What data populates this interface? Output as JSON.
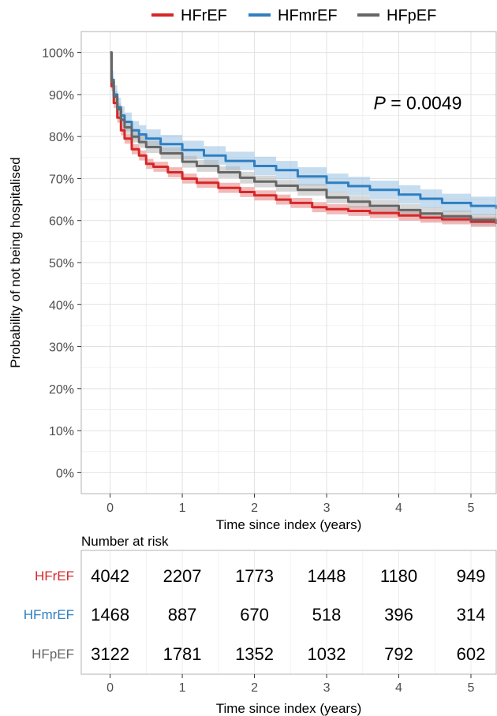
{
  "chart_data": {
    "type": "line",
    "subtype": "kaplan-meier",
    "ylabel": "Probability of not being hospitalised",
    "xlabel": "Time since index (years)",
    "xlim": [
      -0.4,
      5.35
    ],
    "ylim": [
      -0.05,
      1.05
    ],
    "x_ticks": [
      0,
      1,
      2,
      3,
      4,
      5
    ],
    "x_tick_labels": [
      "0",
      "1",
      "2",
      "3",
      "4",
      "5"
    ],
    "y_ticks": [
      0,
      0.1,
      0.2,
      0.3,
      0.4,
      0.5,
      0.6,
      0.7,
      0.8,
      0.9,
      1.0
    ],
    "y_tick_labels": [
      "0%",
      "10%",
      "20%",
      "30%",
      "40%",
      "50%",
      "60%",
      "70%",
      "80%",
      "90%",
      "100%"
    ],
    "grid": true,
    "legend_position": "top",
    "annotation": {
      "italic": "P",
      "rest": " = 0.0049",
      "x": 4.0,
      "y": 0.88
    },
    "series": [
      {
        "name": "HFrEF",
        "color": "#d62728",
        "band_color": "#e57373",
        "points": [
          [
            0,
            1.0
          ],
          [
            0.02,
            0.92
          ],
          [
            0.05,
            0.88
          ],
          [
            0.1,
            0.845
          ],
          [
            0.15,
            0.815
          ],
          [
            0.2,
            0.795
          ],
          [
            0.3,
            0.77
          ],
          [
            0.4,
            0.755
          ],
          [
            0.5,
            0.735
          ],
          [
            0.6,
            0.728
          ],
          [
            0.8,
            0.715
          ],
          [
            1.0,
            0.7
          ],
          [
            1.2,
            0.69
          ],
          [
            1.5,
            0.678
          ],
          [
            1.8,
            0.668
          ],
          [
            2.0,
            0.66
          ],
          [
            2.3,
            0.65
          ],
          [
            2.5,
            0.642
          ],
          [
            2.8,
            0.632
          ],
          [
            3.0,
            0.627
          ],
          [
            3.3,
            0.623
          ],
          [
            3.6,
            0.618
          ],
          [
            4.0,
            0.612
          ],
          [
            4.3,
            0.607
          ],
          [
            4.6,
            0.603
          ],
          [
            5.0,
            0.597
          ],
          [
            5.35,
            0.592
          ]
        ],
        "ci": 0.012
      },
      {
        "name": "HFmrEF",
        "color": "#2e7fc1",
        "band_color": "#8db9e0",
        "points": [
          [
            0,
            1.0
          ],
          [
            0.02,
            0.935
          ],
          [
            0.05,
            0.9
          ],
          [
            0.1,
            0.87
          ],
          [
            0.15,
            0.85
          ],
          [
            0.2,
            0.835
          ],
          [
            0.3,
            0.815
          ],
          [
            0.4,
            0.805
          ],
          [
            0.5,
            0.795
          ],
          [
            0.7,
            0.782
          ],
          [
            1.0,
            0.768
          ],
          [
            1.3,
            0.755
          ],
          [
            1.6,
            0.742
          ],
          [
            2.0,
            0.73
          ],
          [
            2.3,
            0.72
          ],
          [
            2.6,
            0.705
          ],
          [
            3.0,
            0.69
          ],
          [
            3.3,
            0.682
          ],
          [
            3.6,
            0.673
          ],
          [
            4.0,
            0.662
          ],
          [
            4.3,
            0.652
          ],
          [
            4.6,
            0.642
          ],
          [
            5.0,
            0.635
          ],
          [
            5.35,
            0.628
          ]
        ],
        "ci": 0.022
      },
      {
        "name": "HFpEF",
        "color": "#666666",
        "band_color": "#b0b0b0",
        "points": [
          [
            0,
            1.0
          ],
          [
            0.02,
            0.93
          ],
          [
            0.05,
            0.895
          ],
          [
            0.1,
            0.865
          ],
          [
            0.15,
            0.84
          ],
          [
            0.2,
            0.822
          ],
          [
            0.3,
            0.8
          ],
          [
            0.4,
            0.787
          ],
          [
            0.5,
            0.775
          ],
          [
            0.7,
            0.76
          ],
          [
            1.0,
            0.74
          ],
          [
            1.2,
            0.73
          ],
          [
            1.5,
            0.715
          ],
          [
            1.8,
            0.702
          ],
          [
            2.0,
            0.693
          ],
          [
            2.3,
            0.683
          ],
          [
            2.6,
            0.673
          ],
          [
            3.0,
            0.655
          ],
          [
            3.3,
            0.645
          ],
          [
            3.6,
            0.635
          ],
          [
            4.0,
            0.625
          ],
          [
            4.3,
            0.617
          ],
          [
            4.6,
            0.61
          ],
          [
            5.0,
            0.602
          ],
          [
            5.35,
            0.595
          ]
        ],
        "ci": 0.014
      }
    ],
    "risk_table": {
      "title": "Number at risk",
      "xlabel": "Time since index (years)",
      "times": [
        0,
        1,
        2,
        3,
        4,
        5
      ],
      "rows": [
        {
          "group": "HFrEF",
          "color": "#d62728",
          "values": [
            4042,
            2207,
            1773,
            1448,
            1180,
            949
          ]
        },
        {
          "group": "HFmrEF",
          "color": "#2e7fc1",
          "values": [
            1468,
            887,
            670,
            518,
            396,
            314
          ]
        },
        {
          "group": "HFpEF",
          "color": "#666666",
          "values": [
            3122,
            1781,
            1352,
            1032,
            792,
            602
          ]
        }
      ]
    }
  }
}
